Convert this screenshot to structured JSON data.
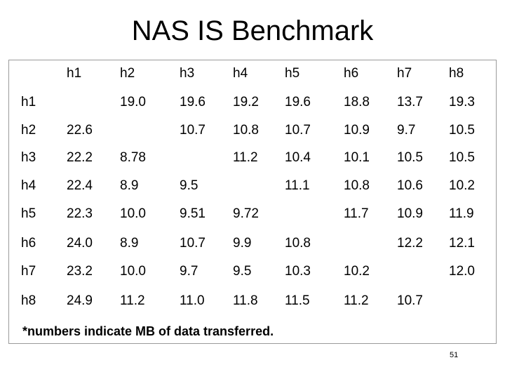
{
  "slide": {
    "title": "NAS IS Benchmark",
    "footnote": "*numbers indicate MB of data transferred.",
    "page_number": "51"
  },
  "table": {
    "columns": [
      "h1",
      "h2",
      "h3",
      "h4",
      "h5",
      "h6",
      "h7",
      "h8"
    ],
    "rows": [
      {
        "label": "h1",
        "cells": [
          "",
          "19.0",
          "19.6",
          "19.2",
          "19.6",
          "18.8",
          "13.7",
          "19.3"
        ]
      },
      {
        "label": "h2",
        "cells": [
          "22.6",
          "",
          "10.7",
          "10.8",
          "10.7",
          "10.9",
          "9.7",
          "10.5"
        ]
      },
      {
        "label": "h3",
        "cells": [
          "22.2",
          "8.78",
          "",
          "11.2",
          "10.4",
          "10.1",
          "10.5",
          "10.5"
        ]
      },
      {
        "label": "h4",
        "cells": [
          "22.4",
          "8.9",
          "9.5",
          "",
          "11.1",
          "10.8",
          "10.6",
          "10.2"
        ]
      },
      {
        "label": "h5",
        "cells": [
          "22.3",
          "10.0",
          "9.51",
          "9.72",
          "",
          "11.7",
          "10.9",
          "11.9"
        ]
      },
      {
        "label": "h6",
        "cells": [
          "24.0",
          "8.9",
          "10.7",
          "9.9",
          "10.8",
          "",
          "12.2",
          "12.1"
        ]
      },
      {
        "label": "h7",
        "cells": [
          "23.2",
          "10.0",
          "9.7",
          "9.5",
          "10.3",
          "10.2",
          "",
          "12.0"
        ]
      },
      {
        "label": "h8",
        "cells": [
          "24.9",
          "11.2",
          "11.0",
          "11.8",
          "11.5",
          "11.2",
          "10.7",
          ""
        ]
      }
    ]
  }
}
